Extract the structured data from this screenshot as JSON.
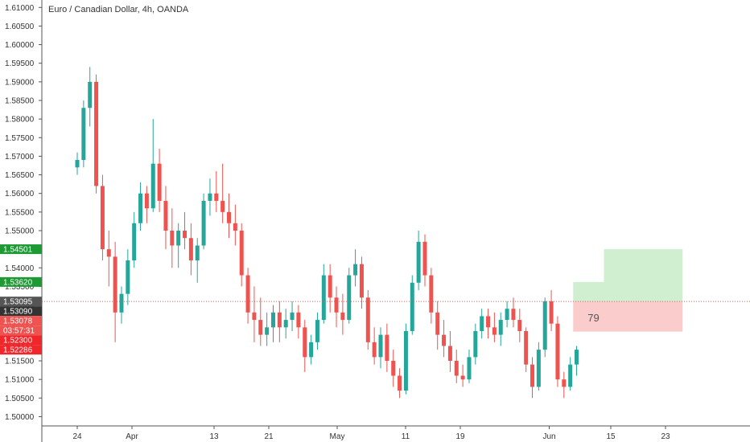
{
  "chart_data": {
    "type": "candlestick",
    "title": "Euro / Canadian Dollar, 4h, OANDA",
    "symbol": "EURCAD",
    "timeframe": "4h",
    "source": "OANDA",
    "y_ticks": [
      "1.61000",
      "1.60500",
      "1.60000",
      "1.59500",
      "1.59000",
      "1.58500",
      "1.58000",
      "1.57500",
      "1.57000",
      "1.56500",
      "1.56000",
      "1.55500",
      "1.55000",
      "1.54500",
      "1.54000",
      "1.53500",
      "1.53000",
      "1.52500",
      "1.52000",
      "1.51500",
      "1.51000",
      "1.50500",
      "1.50000"
    ],
    "y_tick_values": [
      1.61,
      1.605,
      1.6,
      1.595,
      1.59,
      1.585,
      1.58,
      1.575,
      1.57,
      1.565,
      1.56,
      1.555,
      1.55,
      1.545,
      1.54,
      1.535,
      1.53,
      1.525,
      1.52,
      1.515,
      1.51,
      1.505,
      1.5
    ],
    "x_ticks": [
      "24",
      "Apr",
      "13",
      "21",
      "May",
      "11",
      "19",
      "Jun",
      "15",
      "23"
    ],
    "x_tick_days": [
      0,
      8,
      20,
      28,
      38,
      48,
      56,
      69,
      78,
      86
    ],
    "ylim": [
      1.4975,
      1.612
    ],
    "price_scale_right": true,
    "grid": false,
    "price_badges": [
      {
        "label": "1.54501",
        "value": 1.54501,
        "color": "#1e9a34"
      },
      {
        "label": "1.53620",
        "value": 1.5362,
        "color": "#1e9a34"
      },
      {
        "label": "1.53095",
        "value": 1.53095,
        "color": "#555555"
      },
      {
        "label": "1.53090",
        "value": 1.5309,
        "color": "#333333"
      },
      {
        "label": "1.53078",
        "value": 1.53078,
        "color": "#ef5350"
      },
      {
        "label": "03:57:31",
        "value": 1.5274,
        "color": "#ef5350"
      },
      {
        "label": "1.52300",
        "value": 1.523,
        "color": "#f0262a"
      },
      {
        "label": "1.52286",
        "value": 1.52286,
        "color": "#f0262a"
      }
    ],
    "current_price": 1.53095,
    "risk_reward": {
      "entry": 1.53095,
      "target": 1.54501,
      "target_near": 1.5362,
      "stop": 1.52286,
      "label": "79",
      "start_day": 72.5,
      "mid_day": 77.0,
      "end_day": 88.5
    },
    "ohlc_day_range": [
      0,
      73
    ],
    "ohlc": [
      [
        1.567,
        1.571,
        1.565,
        1.569
      ],
      [
        1.569,
        1.585,
        1.567,
        1.583
      ],
      [
        1.583,
        1.594,
        1.578,
        1.59
      ],
      [
        1.59,
        1.592,
        1.56,
        1.562
      ],
      [
        1.562,
        1.565,
        1.542,
        1.545
      ],
      [
        1.545,
        1.55,
        1.535,
        1.543
      ],
      [
        1.543,
        1.547,
        1.52,
        1.528
      ],
      [
        1.528,
        1.535,
        1.525,
        1.533
      ],
      [
        1.533,
        1.545,
        1.53,
        1.542
      ],
      [
        1.542,
        1.555,
        1.54,
        1.552
      ],
      [
        1.552,
        1.563,
        1.55,
        1.56
      ],
      [
        1.56,
        1.562,
        1.552,
        1.556
      ],
      [
        1.556,
        1.58,
        1.555,
        1.568
      ],
      [
        1.568,
        1.572,
        1.555,
        1.558
      ],
      [
        1.558,
        1.562,
        1.545,
        1.55
      ],
      [
        1.55,
        1.556,
        1.54,
        1.546
      ],
      [
        1.546,
        1.552,
        1.54,
        1.55
      ],
      [
        1.55,
        1.555,
        1.545,
        1.548
      ],
      [
        1.548,
        1.552,
        1.538,
        1.542
      ],
      [
        1.542,
        1.548,
        1.536,
        1.546
      ],
      [
        1.546,
        1.56,
        1.545,
        1.558
      ],
      [
        1.558,
        1.564,
        1.554,
        1.56
      ],
      [
        1.56,
        1.566,
        1.555,
        1.558
      ],
      [
        1.558,
        1.568,
        1.552,
        1.555
      ],
      [
        1.555,
        1.56,
        1.548,
        1.552
      ],
      [
        1.552,
        1.557,
        1.546,
        1.55
      ],
      [
        1.55,
        1.552,
        1.535,
        1.538
      ],
      [
        1.538,
        1.54,
        1.525,
        1.528
      ],
      [
        1.528,
        1.535,
        1.52,
        1.526
      ],
      [
        1.526,
        1.532,
        1.519,
        1.522
      ],
      [
        1.522,
        1.528,
        1.519,
        1.524
      ],
      [
        1.524,
        1.53,
        1.52,
        1.528
      ],
      [
        1.528,
        1.531,
        1.52,
        1.524
      ],
      [
        1.524,
        1.529,
        1.521,
        1.526
      ],
      [
        1.526,
        1.531,
        1.523,
        1.528
      ],
      [
        1.528,
        1.53,
        1.521,
        1.524
      ],
      [
        1.524,
        1.526,
        1.512,
        1.516
      ],
      [
        1.516,
        1.522,
        1.514,
        1.52
      ],
      [
        1.52,
        1.528,
        1.518,
        1.526
      ],
      [
        1.526,
        1.541,
        1.525,
        1.538
      ],
      [
        1.538,
        1.541,
        1.528,
        1.532
      ],
      [
        1.532,
        1.535,
        1.524,
        1.528
      ],
      [
        1.528,
        1.533,
        1.522,
        1.526
      ],
      [
        1.526,
        1.54,
        1.525,
        1.538
      ],
      [
        1.538,
        1.545,
        1.535,
        1.541
      ],
      [
        1.541,
        1.543,
        1.529,
        1.532
      ],
      [
        1.532,
        1.534,
        1.518,
        1.52
      ],
      [
        1.52,
        1.524,
        1.514,
        1.516
      ],
      [
        1.516,
        1.524,
        1.513,
        1.522
      ],
      [
        1.522,
        1.525,
        1.512,
        1.515
      ],
      [
        1.515,
        1.518,
        1.508,
        1.511
      ],
      [
        1.511,
        1.513,
        1.505,
        1.507
      ],
      [
        1.507,
        1.525,
        1.506,
        1.523
      ],
      [
        1.523,
        1.538,
        1.522,
        1.536
      ],
      [
        1.536,
        1.55,
        1.534,
        1.547
      ],
      [
        1.547,
        1.549,
        1.535,
        1.538
      ],
      [
        1.538,
        1.54,
        1.525,
        1.528
      ],
      [
        1.528,
        1.531,
        1.518,
        1.522
      ],
      [
        1.522,
        1.526,
        1.516,
        1.519
      ],
      [
        1.519,
        1.523,
        1.512,
        1.515
      ]
    ],
    "ohlc_tail": [
      [
        1.515,
        1.518,
        1.509,
        1.511
      ],
      [
        1.511,
        1.514,
        1.508,
        1.51
      ],
      [
        1.51,
        1.518,
        1.509,
        1.516
      ],
      [
        1.516,
        1.525,
        1.514,
        1.523
      ],
      [
        1.523,
        1.529,
        1.521,
        1.527
      ],
      [
        1.527,
        1.529,
        1.521,
        1.524
      ],
      [
        1.524,
        1.528,
        1.52,
        1.522
      ],
      [
        1.522,
        1.528,
        1.519,
        1.526
      ],
      [
        1.526,
        1.531,
        1.524,
        1.529
      ],
      [
        1.529,
        1.532,
        1.524,
        1.526
      ],
      [
        1.526,
        1.529,
        1.52,
        1.523
      ],
      [
        1.523,
        1.524,
        1.512,
        1.514
      ],
      [
        1.514,
        1.516,
        1.505,
        1.508
      ],
      [
        1.508,
        1.52,
        1.507,
        1.518
      ],
      [
        1.518,
        1.532,
        1.516,
        1.531
      ],
      [
        1.531,
        1.534,
        1.523,
        1.525
      ],
      [
        1.525,
        1.527,
        1.508,
        1.51
      ],
      [
        1.51,
        1.512,
        1.505,
        1.508
      ],
      [
        1.508,
        1.516,
        1.507,
        1.514
      ],
      [
        1.514,
        1.519,
        1.511,
        1.518
      ]
    ]
  }
}
